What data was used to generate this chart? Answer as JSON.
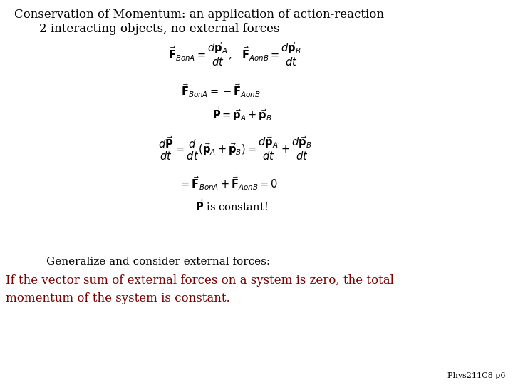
{
  "background_color": "#ffffff",
  "title_line1": "Conservation of Momentum: an application of action-reaction",
  "title_line2": "2 interacting objects, no external forces",
  "title_color": "#000000",
  "title_fontsize": 12,
  "eq1": "$\\vec{\\mathbf{F}}_{BonA} = \\dfrac{d\\vec{\\mathbf{p}}_A}{dt}$,   $\\vec{\\mathbf{F}}_{AonB} = \\dfrac{d\\vec{\\mathbf{p}}_B}{dt}$",
  "eq2": "$\\vec{\\mathbf{F}}_{BonA} = -\\vec{\\mathbf{F}}_{AonB}$",
  "eq3": "$\\vec{\\mathbf{P}} = \\vec{\\mathbf{p}}_A + \\vec{\\mathbf{p}}_B$",
  "eq4": "$\\dfrac{d\\vec{\\mathbf{P}}}{dt} = \\dfrac{d}{dt}(\\vec{\\mathbf{p}}_A + \\vec{\\mathbf{p}}_B) = \\dfrac{d\\vec{\\mathbf{p}}_A}{dt} + \\dfrac{d\\vec{\\mathbf{p}}_B}{dt}$",
  "eq5": "$= \\vec{\\mathbf{F}}_{BonA} + \\vec{\\mathbf{F}}_{AonB} = 0$",
  "eq6": "$\\vec{\\mathbf{P}}$ is constant!",
  "generalize_text": "Generalize and consider external forces:",
  "generalize_color": "#000000",
  "generalize_fontsize": 11,
  "highlight_text1": "If the vector sum of external forces on a system is zero, the total",
  "highlight_text2": "momentum of the system is constant.",
  "highlight_color": "#7b0000",
  "highlight_fontsize": 12,
  "footnote": "Phys211C8 p6",
  "footnote_color": "#000000",
  "footnote_fontsize": 8,
  "eq_color": "#000000",
  "eq_fontsize": 10.5
}
